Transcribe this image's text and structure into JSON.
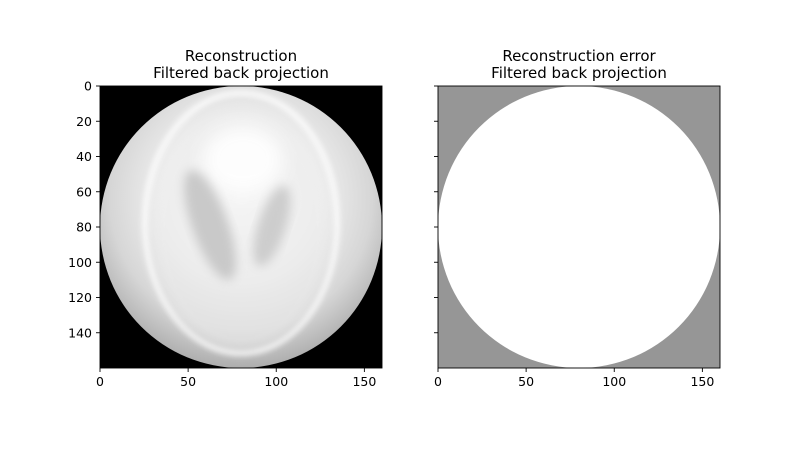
{
  "chart_data": [
    {
      "type": "heatmap",
      "panel": "reconstruction",
      "title_line1": "Reconstruction",
      "title_line2": "Filtered back projection",
      "xlim": [
        0,
        160
      ],
      "ylim": [
        160,
        0
      ],
      "x_ticks": [
        0,
        50,
        100,
        150
      ],
      "y_ticks": [
        0,
        20,
        40,
        60,
        80,
        100,
        120,
        140
      ],
      "x_tick_labels": [
        "0",
        "50",
        "100",
        "150"
      ],
      "y_tick_labels": [
        "0",
        "20",
        "40",
        "60",
        "80",
        "100",
        "120",
        "140"
      ],
      "y_tick_labels_visible": true,
      "image_size": [
        160,
        160
      ],
      "circle_center": [
        80,
        80
      ],
      "circle_radius": 80,
      "colormap": "gray",
      "outside_circle_color": "#000000",
      "content": "Shepp-Logan phantom reconstruction: bright elliptical head with two darker inner ellipses, darker grey toward the disc edge"
    },
    {
      "type": "heatmap",
      "panel": "reconstruction-error",
      "title_line1": "Reconstruction error",
      "title_line2": "Filtered back projection",
      "xlim": [
        0,
        160
      ],
      "ylim": [
        160,
        0
      ],
      "x_ticks": [
        0,
        50,
        100,
        150
      ],
      "y_ticks": [
        0,
        20,
        40,
        60,
        80,
        100,
        120,
        140
      ],
      "x_tick_labels": [
        "0",
        "50",
        "100",
        "150"
      ],
      "y_tick_labels": [],
      "y_tick_labels_visible": false,
      "image_size": [
        160,
        160
      ],
      "circle_center": [
        80,
        80
      ],
      "circle_radius": 80,
      "colormap": "gray",
      "inside_circle_color": "#ffffff",
      "outside_circle_color": "#969696",
      "content": "uniform white disc on grey background"
    }
  ]
}
